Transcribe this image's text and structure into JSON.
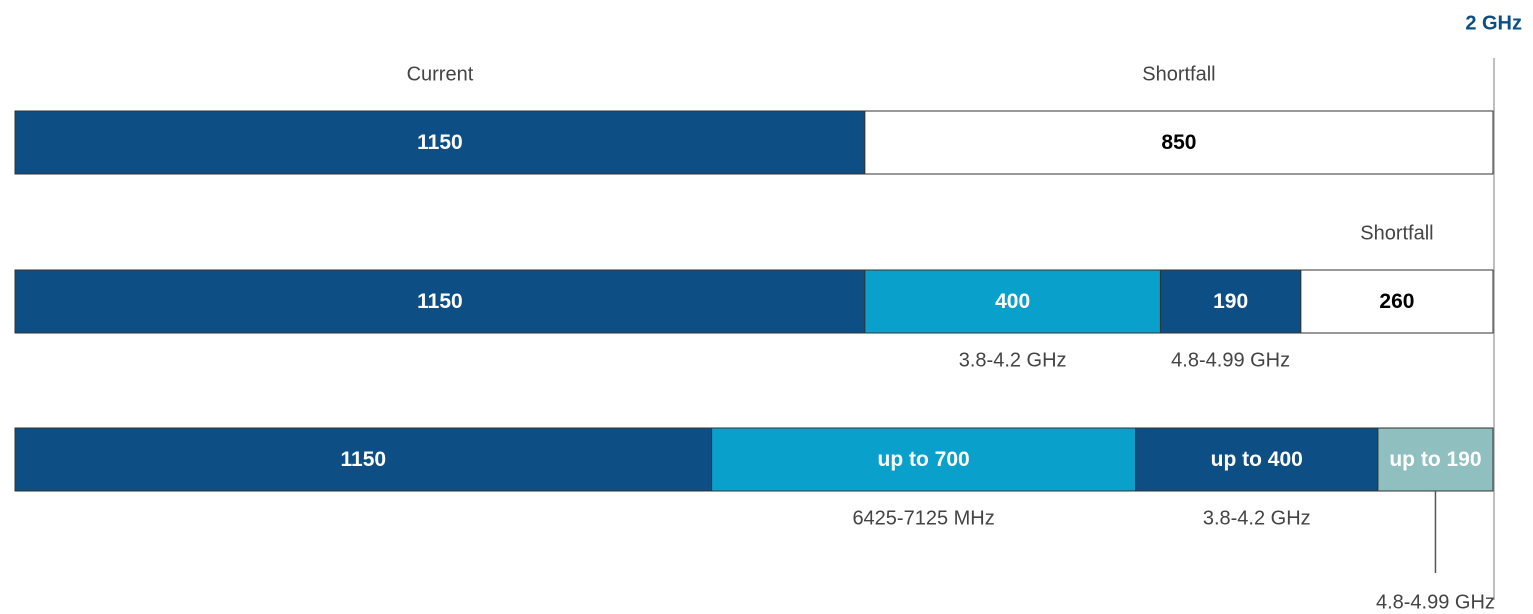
{
  "chart_data": {
    "type": "stacked_bar_h",
    "annotation": "2 GHz",
    "rows": [
      {
        "segments": [
          {
            "value": 1150,
            "color": "#0d4f85",
            "label_above": "Current"
          },
          {
            "value": 850,
            "color": "#ffffff",
            "label_above": "Shortfall"
          }
        ]
      },
      {
        "segments": [
          {
            "value": 1150,
            "color": "#0d4f85"
          },
          {
            "value": 400,
            "color": "#0aa0cc",
            "label_below": "3.8-4.2 GHz"
          },
          {
            "value": 190,
            "color": "#0d4f85",
            "label_below": "4.8-4.99 GHz"
          },
          {
            "value": 260,
            "color": "#ffffff",
            "label_above": "Shortfall"
          }
        ]
      },
      {
        "segments": [
          {
            "value": 1150,
            "color": "#0d4f85"
          },
          {
            "value": 700,
            "value_label": "up to 700",
            "color": "#0aa0cc",
            "label_below": "6425-7125 MHz"
          },
          {
            "value": 400,
            "value_label": "up to 400",
            "color": "#0d4f85",
            "label_below": "3.8-4.2 GHz"
          },
          {
            "value": 190,
            "value_label": "up to 190",
            "color": "#8fbfbf",
            "label_below": "4.8-4.99 GHz"
          }
        ]
      }
    ]
  }
}
